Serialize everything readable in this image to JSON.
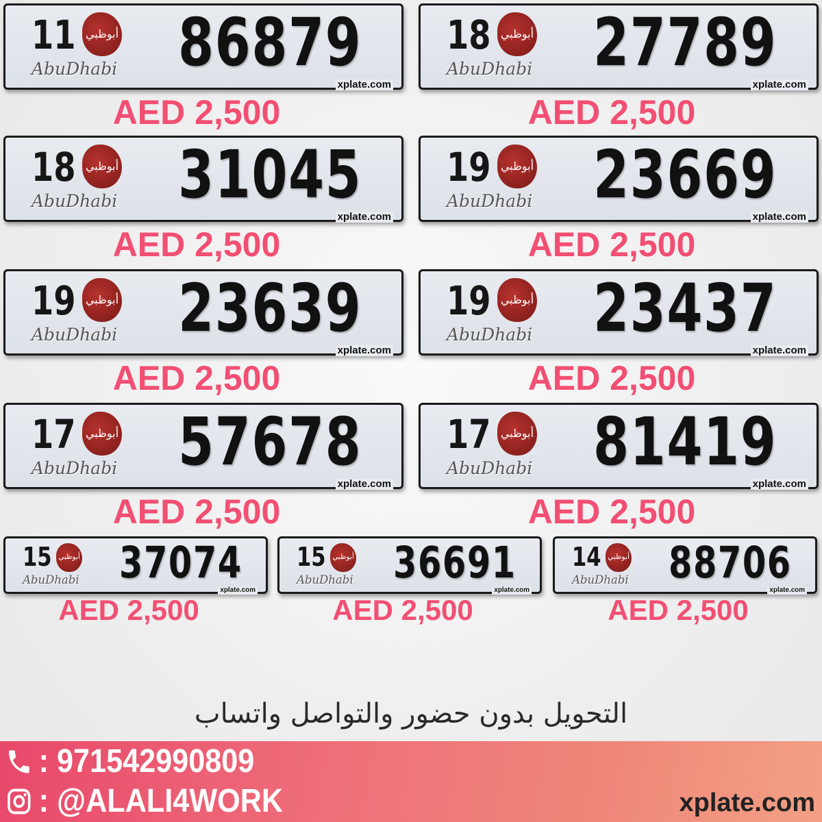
{
  "plates_large": [
    {
      "code": "11",
      "number": "86879",
      "city": "AbuDhabi",
      "tag": "xplate.com",
      "price": "AED 2,500"
    },
    {
      "code": "18",
      "number": "27789",
      "city": "AbuDhabi",
      "tag": "xplate.com",
      "price": "AED 2,500"
    },
    {
      "code": "18",
      "number": "31045",
      "city": "AbuDhabi",
      "tag": "xplate.com",
      "price": "AED 2,500"
    },
    {
      "code": "19",
      "number": "23669",
      "city": "AbuDhabi",
      "tag": "xplate.com",
      "price": "AED 2,500"
    },
    {
      "code": "19",
      "number": "23639",
      "city": "AbuDhabi",
      "tag": "xplate.com",
      "price": "AED 2,500"
    },
    {
      "code": "19",
      "number": "23437",
      "city": "AbuDhabi",
      "tag": "xplate.com",
      "price": "AED 2,500"
    },
    {
      "code": "17",
      "number": "57678",
      "city": "AbuDhabi",
      "tag": "xplate.com",
      "price": "AED 2,500"
    },
    {
      "code": "17",
      "number": "81419",
      "city": "AbuDhabi",
      "tag": "xplate.com",
      "price": "AED 2,500"
    }
  ],
  "plates_small": [
    {
      "code": "15",
      "number": "37074",
      "city": "AbuDhabi",
      "tag": "xplate.com",
      "price": "AED 2,500"
    },
    {
      "code": "15",
      "number": "36691",
      "city": "AbuDhabi",
      "tag": "xplate.com",
      "price": "AED 2,500"
    },
    {
      "code": "14",
      "number": "88706",
      "city": "AbuDhabi",
      "tag": "xplate.com",
      "price": "AED 2,500"
    }
  ],
  "logo_text": "أبوظبي",
  "arabic_note": "التحويل بدون حضور والتواصل واتساب",
  "contact": {
    "phone_icon": "phone-icon",
    "phone": ": 971542990809",
    "instagram_icon": "instagram-icon",
    "instagram": ": @ALALI4WORK"
  },
  "site": "xplate.com",
  "colors": {
    "price": "#f24f73",
    "banner_start": "#e8486a",
    "banner_end": "#f3a085"
  }
}
